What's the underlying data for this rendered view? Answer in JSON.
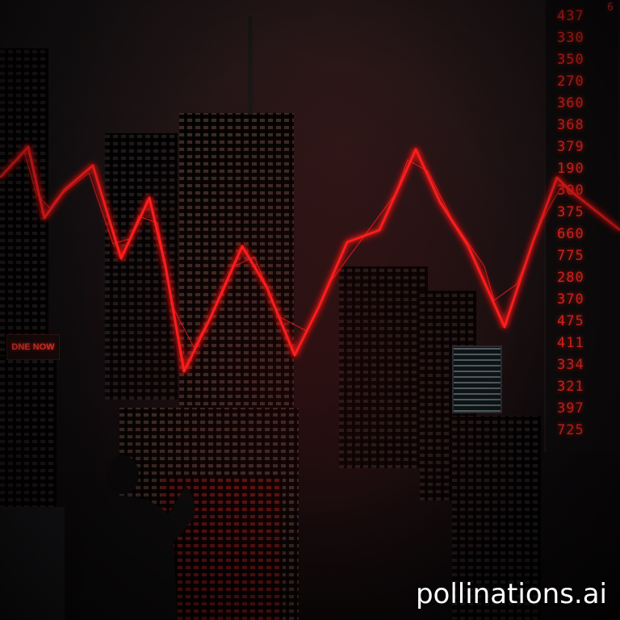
{
  "scene": {
    "accent_color": "#ff1e1e",
    "tower_ticker": {
      "values": [
        "437",
        "330",
        "350",
        "270",
        "360",
        "368",
        "379",
        "190",
        "300",
        "375",
        "660",
        "775",
        "280",
        "370",
        "475",
        "411",
        "334",
        "321",
        "397",
        "725"
      ],
      "top_digit": "6"
    },
    "signs": {
      "left_sign": "DNE NOW"
    },
    "chart_line": {
      "shown_as": "glowing red zigzag across the skyline",
      "color": "#ff1e1e"
    }
  },
  "watermark": "pollinations.ai"
}
